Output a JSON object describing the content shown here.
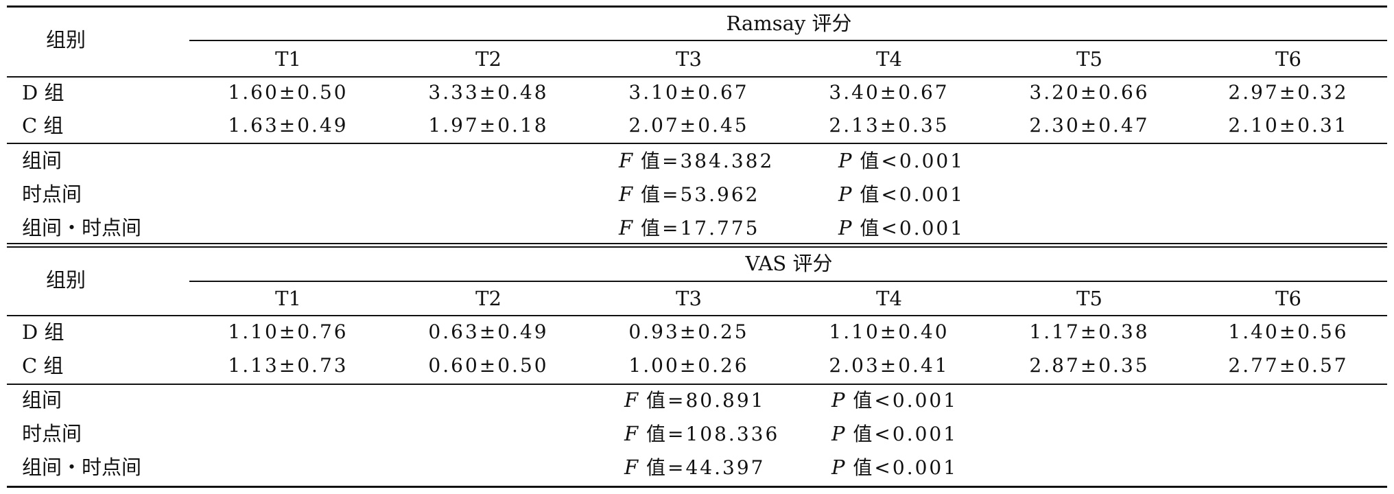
{
  "sections": [
    {
      "group_header": "组别",
      "title": "Ramsay 评分",
      "time_points": [
        "T1",
        "T2",
        "T3",
        "T4",
        "T5",
        "T6"
      ],
      "rows": [
        {
          "label": "D 组",
          "values": [
            "1.60±0.50",
            "3.33±0.48",
            "3.10±0.67",
            "3.40±0.67",
            "3.20±0.66",
            "2.97±0.32"
          ]
        },
        {
          "label": "C 组",
          "values": [
            "1.63±0.49",
            "1.97±0.18",
            "2.07±0.45",
            "2.13±0.35",
            "2.30±0.47",
            "2.10±0.31"
          ]
        }
      ],
      "stats": [
        {
          "label": "组间",
          "f_prefix": "F",
          "f_text": " 值=384.382",
          "p_prefix": "P",
          "p_text": " 值<0.001"
        },
        {
          "label": "时点间",
          "f_prefix": "F",
          "f_text": " 值=53.962",
          "p_prefix": "P",
          "p_text": " 值<0.001"
        },
        {
          "label": "组间・时点间",
          "f_prefix": "F",
          "f_text": " 值=17.775",
          "p_prefix": "P",
          "p_text": " 值<0.001"
        }
      ]
    },
    {
      "group_header": "组别",
      "title": "VAS 评分",
      "time_points": [
        "T1",
        "T2",
        "T3",
        "T4",
        "T5",
        "T6"
      ],
      "rows": [
        {
          "label": "D 组",
          "values": [
            "1.10±0.76",
            "0.63±0.49",
            "0.93±0.25",
            "1.10±0.40",
            "1.17±0.38",
            "1.40±0.56"
          ]
        },
        {
          "label": "C 组",
          "values": [
            "1.13±0.73",
            "0.60±0.50",
            "1.00±0.26",
            "2.03±0.41",
            "2.87±0.35",
            "2.77±0.57"
          ]
        }
      ],
      "stats": [
        {
          "label": "组间",
          "f_prefix": "F",
          "f_text": " 值=80.891",
          "p_prefix": "P",
          "p_text": " 值<0.001"
        },
        {
          "label": "时点间",
          "f_prefix": "F",
          "f_text": " 值=108.336",
          "p_prefix": "P",
          "p_text": " 值<0.001"
        },
        {
          "label": "组间・时点间",
          "f_prefix": "F",
          "f_text": " 值=44.397",
          "p_prefix": "P",
          "p_text": " 值<0.001"
        }
      ]
    }
  ]
}
